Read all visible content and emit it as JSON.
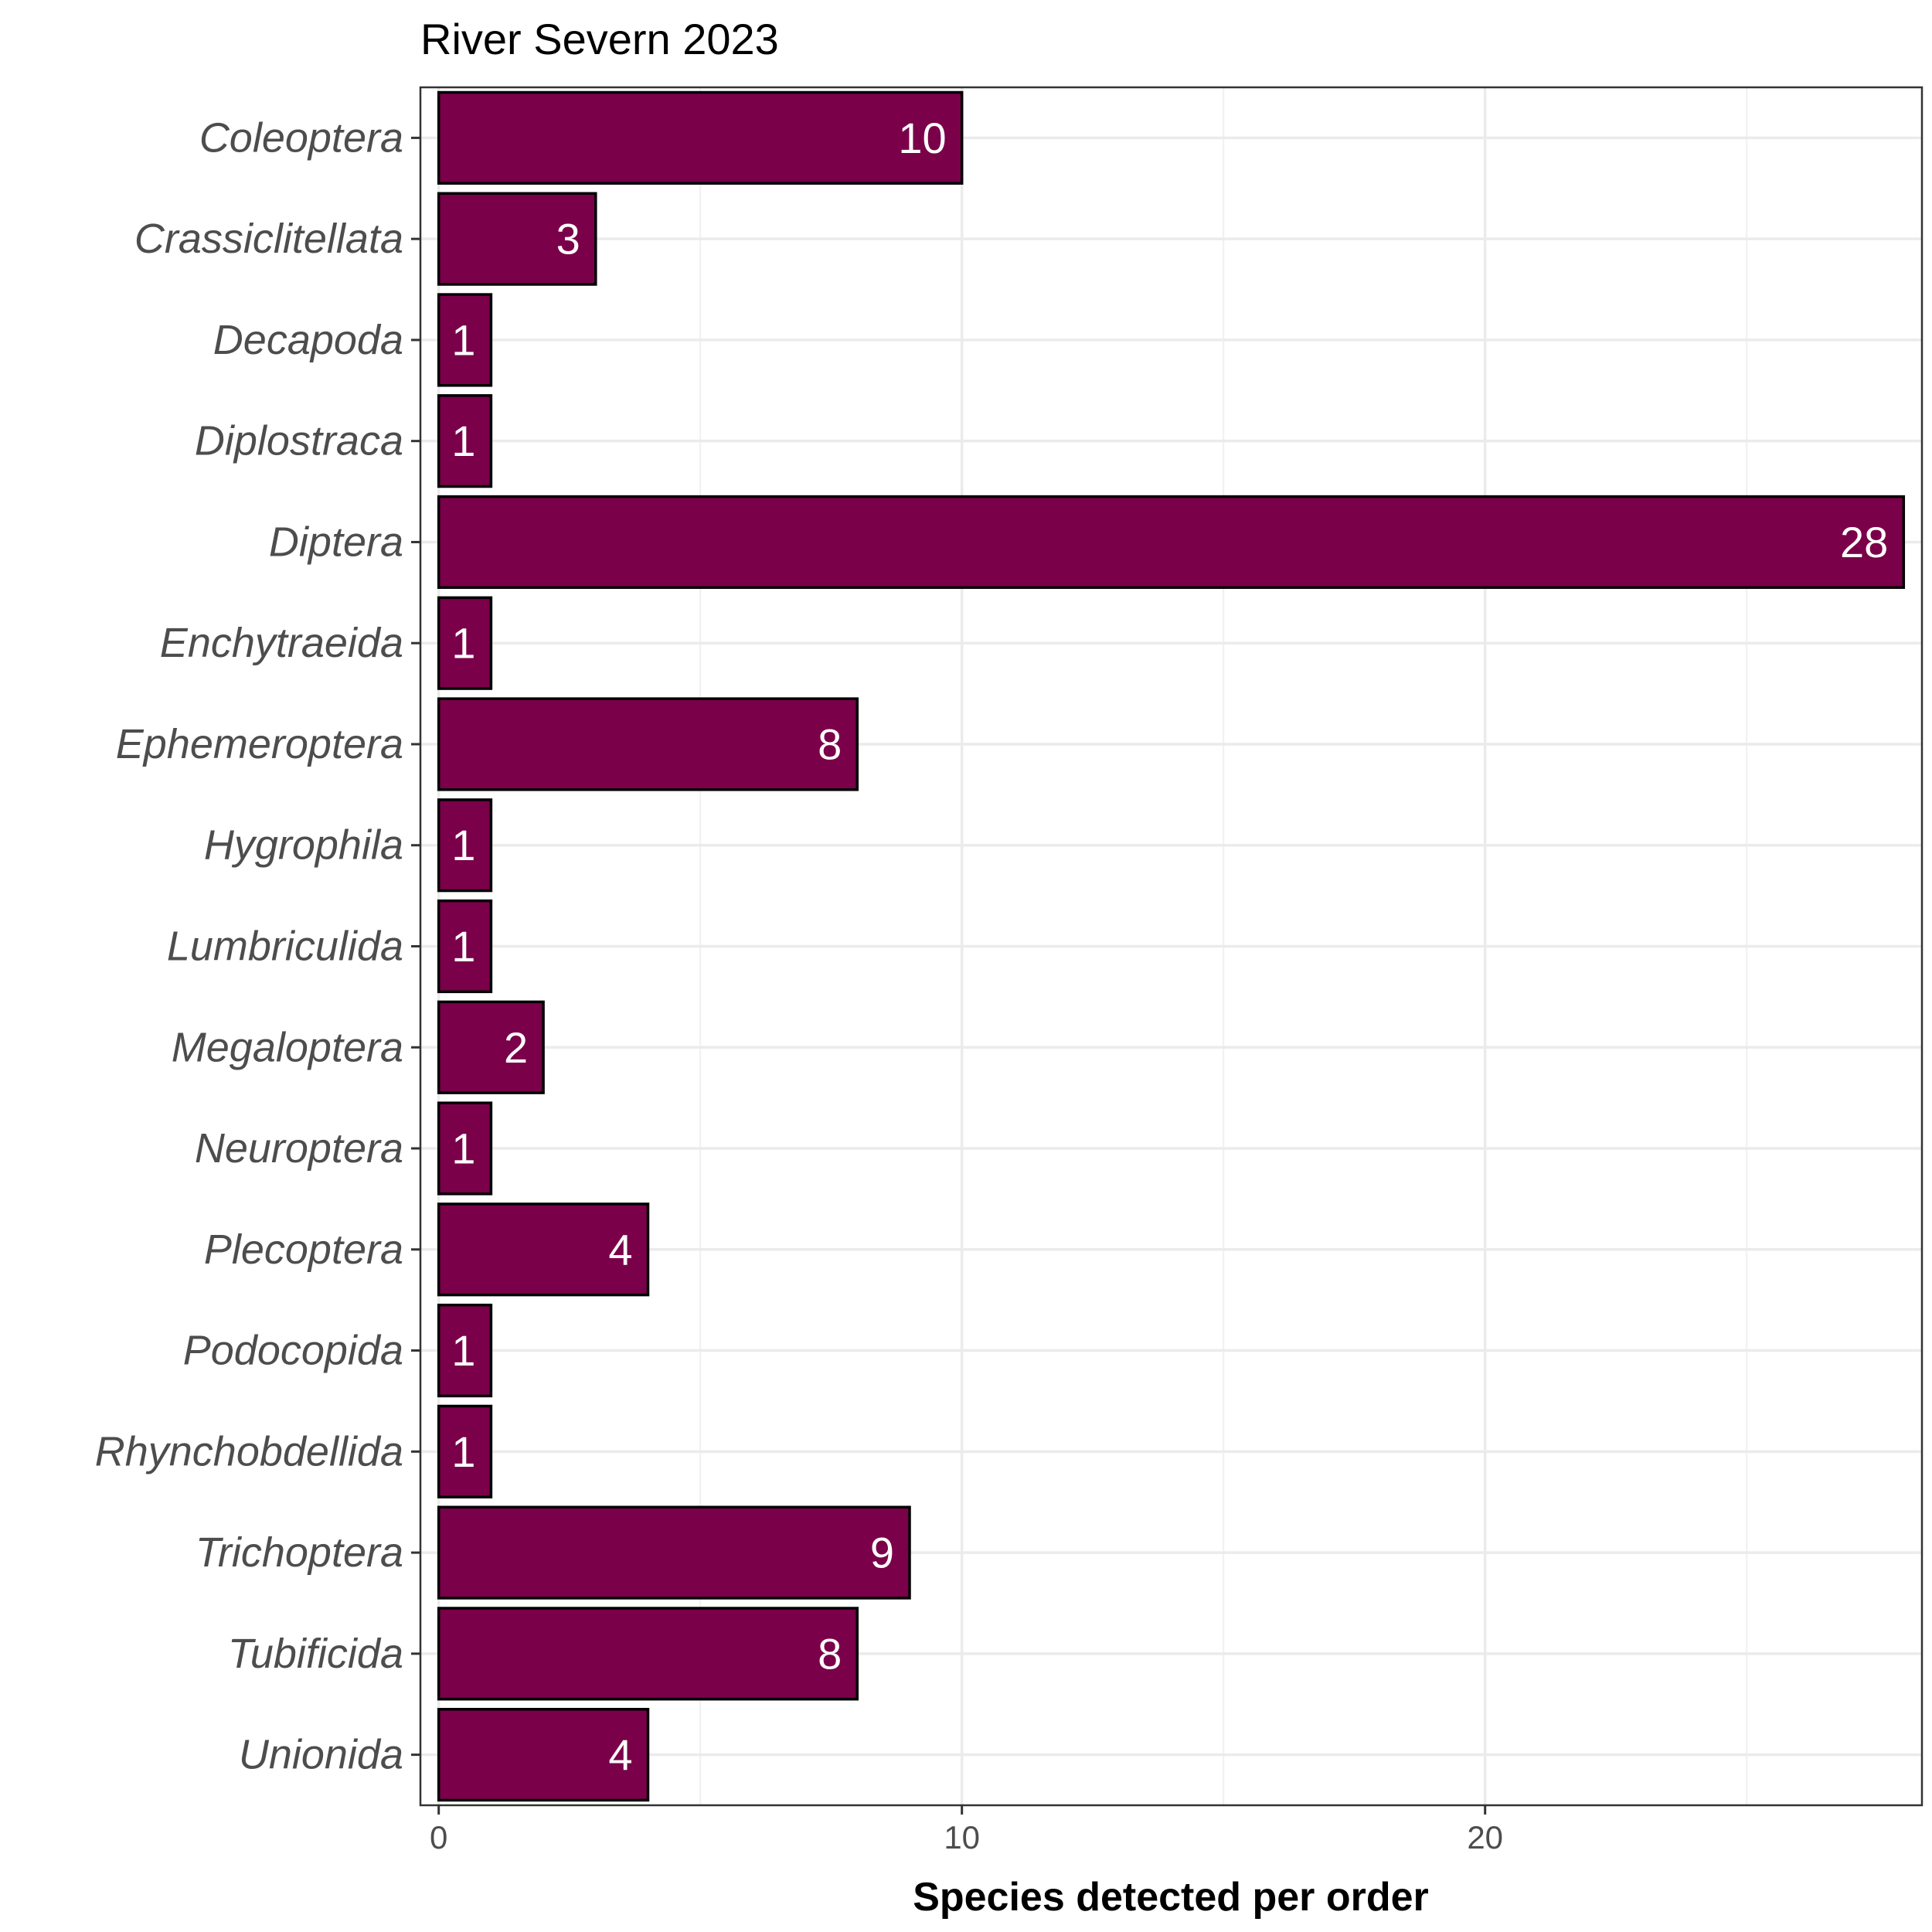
{
  "chart_data": {
    "type": "bar",
    "orientation": "horizontal",
    "title": "River Severn 2023",
    "xlabel": "Species detected per order",
    "ylabel": "",
    "categories": [
      "Coleoptera",
      "Crassiclitellata",
      "Decapoda",
      "Diplostraca",
      "Diptera",
      "Enchytraeida",
      "Ephemeroptera",
      "Hygrophila",
      "Lumbriculida",
      "Megaloptera",
      "Neuroptera",
      "Plecoptera",
      "Podocopida",
      "Rhynchobdellida",
      "Trichoptera",
      "Tubificida",
      "Unionida"
    ],
    "values": [
      10,
      3,
      1,
      1,
      28,
      1,
      8,
      1,
      1,
      2,
      1,
      4,
      1,
      1,
      9,
      8,
      4
    ],
    "xlim": [
      -0.35,
      28.35
    ],
    "xticks": [
      0,
      10,
      20
    ],
    "grid": true,
    "legend": "none",
    "bar_color": "#7a004a",
    "bar_outline": "#000000"
  }
}
